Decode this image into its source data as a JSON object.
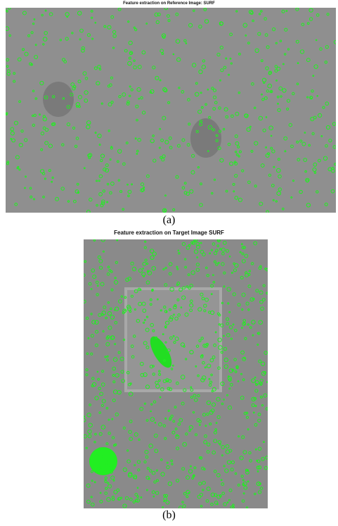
{
  "figure_a": {
    "title": "Feature extraction on Reference Image: SURF",
    "caption": "(a)"
  },
  "figure_b": {
    "title": "Feature extraction on Target Image SURF",
    "caption": "(b)"
  }
}
